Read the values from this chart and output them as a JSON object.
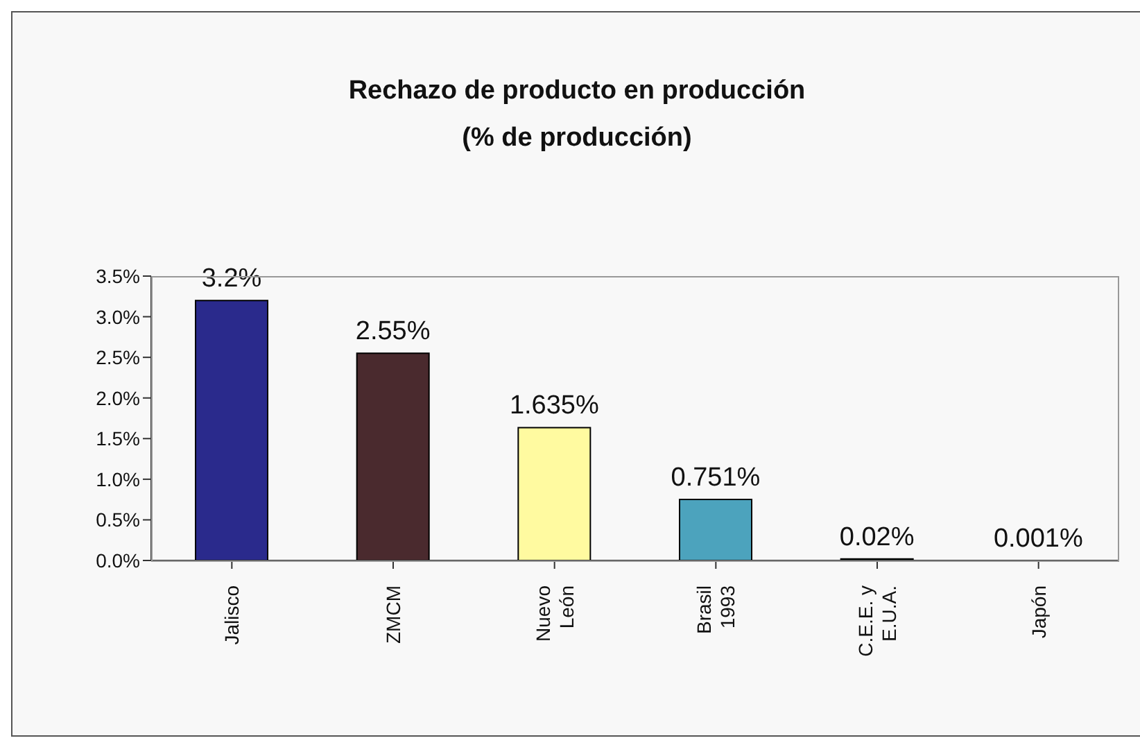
{
  "chart_data": {
    "type": "bar",
    "title": "Rechazo de producto en producción",
    "subtitle": "(% de producción)",
    "categories": [
      "Jalisco",
      "ZMCM",
      "Nuevo León",
      "Brasil 1993",
      "C.E.E. y E.U.A.",
      "Japón"
    ],
    "values": [
      3.2,
      2.55,
      1.635,
      0.751,
      0.02,
      0.001
    ],
    "colors": [
      "#2a2a8c",
      "#4a2a2e",
      "#fffaa0",
      "#4ca3bd",
      "#1a3a2a",
      "#202020"
    ],
    "value_labels": [
      "3.2%",
      "2.55%",
      "1.635%",
      "0.751%",
      "0.02%",
      "0.001%"
    ],
    "ylim": [
      0,
      3.5
    ],
    "yticks": [
      {
        "value": 0,
        "label": "0.0%"
      },
      {
        "value": 0.5,
        "label": "0.5%"
      },
      {
        "value": 1,
        "label": "1.0%"
      },
      {
        "value": 1.5,
        "label": "1.5%"
      },
      {
        "value": 2,
        "label": "2.0%"
      },
      {
        "value": 2.5,
        "label": "2.5%"
      },
      {
        "value": 3,
        "label": "3.0%"
      },
      {
        "value": 3.5,
        "label": "3.5%"
      }
    ],
    "grid": false,
    "legend": false
  }
}
